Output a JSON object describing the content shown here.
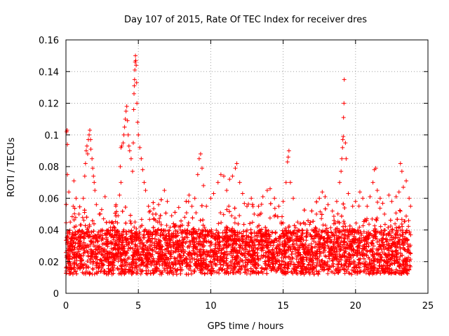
{
  "chart_data": {
    "type": "scatter",
    "title": "Day 107 of 2015, Rate Of TEC Index for receiver dres",
    "xlabel": "GPS time / hours",
    "ylabel": "ROTI / TECUs",
    "xlim": [
      0,
      25
    ],
    "ylim": [
      0,
      0.16
    ],
    "x_ticks": [
      0,
      5,
      10,
      15,
      20,
      25
    ],
    "x_tick_labels": [
      "0",
      "5",
      "10",
      "15",
      "20",
      "25"
    ],
    "y_ticks": [
      0,
      0.02,
      0.04,
      0.06,
      0.08,
      0.1,
      0.12,
      0.14,
      0.16
    ],
    "y_tick_labels": [
      "0",
      "0.02",
      "0.04",
      "0.06",
      "0.08",
      "0.1",
      "0.12",
      "0.14",
      "0.16"
    ],
    "grid": true,
    "marker": "+",
    "color": "#ff0000",
    "series": [
      {
        "name": "ROTI",
        "points": [
          [
            0.05,
            0.102
          ],
          [
            0.08,
            0.103
          ],
          [
            0.1,
            0.094
          ],
          [
            0.1,
            0.075
          ],
          [
            0.2,
            0.064
          ],
          [
            0.3,
            0.045
          ],
          [
            0.5,
            0.055
          ],
          [
            0.55,
            0.071
          ],
          [
            0.7,
            0.06
          ],
          [
            0.9,
            0.05
          ],
          [
            1.2,
            0.06
          ],
          [
            1.3,
            0.074
          ],
          [
            1.35,
            0.082
          ],
          [
            1.4,
            0.09
          ],
          [
            1.45,
            0.093
          ],
          [
            1.5,
            0.088
          ],
          [
            1.55,
            0.097
          ],
          [
            1.6,
            0.1
          ],
          [
            1.65,
            0.103
          ],
          [
            1.7,
            0.097
          ],
          [
            1.72,
            0.091
          ],
          [
            1.8,
            0.085
          ],
          [
            1.85,
            0.079
          ],
          [
            1.9,
            0.074
          ],
          [
            1.95,
            0.07
          ],
          [
            2.0,
            0.065
          ],
          [
            2.1,
            0.056
          ],
          [
            2.3,
            0.05
          ],
          [
            2.6,
            0.047
          ],
          [
            2.7,
            0.061
          ],
          [
            3.0,
            0.045
          ],
          [
            3.3,
            0.042
          ],
          [
            3.6,
            0.049
          ],
          [
            3.7,
            0.062
          ],
          [
            3.8,
            0.07
          ],
          [
            3.75,
            0.08
          ],
          [
            3.8,
            0.092
          ],
          [
            3.85,
            0.093
          ],
          [
            3.95,
            0.095
          ],
          [
            4.0,
            0.1
          ],
          [
            4.05,
            0.105
          ],
          [
            4.1,
            0.11
          ],
          [
            4.15,
            0.115
          ],
          [
            4.2,
            0.118
          ],
          [
            4.25,
            0.109
          ],
          [
            4.3,
            0.1
          ],
          [
            4.35,
            0.093
          ],
          [
            4.4,
            0.09
          ],
          [
            4.5,
            0.085
          ],
          [
            4.6,
            0.077
          ],
          [
            4.65,
            0.095
          ],
          [
            4.68,
            0.116
          ],
          [
            4.7,
            0.126
          ],
          [
            4.72,
            0.131
          ],
          [
            4.74,
            0.135
          ],
          [
            4.76,
            0.141
          ],
          [
            4.78,
            0.146
          ],
          [
            4.8,
            0.15
          ],
          [
            4.82,
            0.147
          ],
          [
            4.85,
            0.144
          ],
          [
            4.88,
            0.133
          ],
          [
            4.9,
            0.12
          ],
          [
            4.95,
            0.108
          ],
          [
            5.0,
            0.1
          ],
          [
            5.1,
            0.092
          ],
          [
            5.2,
            0.085
          ],
          [
            5.3,
            0.078
          ],
          [
            5.4,
            0.07
          ],
          [
            5.5,
            0.065
          ],
          [
            5.7,
            0.055
          ],
          [
            6.0,
            0.05
          ],
          [
            6.2,
            0.046
          ],
          [
            6.4,
            0.056
          ],
          [
            6.8,
            0.065
          ],
          [
            7.0,
            0.058
          ],
          [
            7.3,
            0.049
          ],
          [
            7.6,
            0.043
          ],
          [
            7.9,
            0.04
          ],
          [
            8.2,
            0.048
          ],
          [
            8.5,
            0.062
          ],
          [
            8.7,
            0.055
          ],
          [
            8.9,
            0.06
          ],
          [
            9.1,
            0.075
          ],
          [
            9.2,
            0.085
          ],
          [
            9.3,
            0.088
          ],
          [
            9.4,
            0.079
          ],
          [
            9.5,
            0.068
          ],
          [
            9.7,
            0.055
          ],
          [
            10.0,
            0.06
          ],
          [
            10.2,
            0.063
          ],
          [
            10.5,
            0.07
          ],
          [
            10.7,
            0.075
          ],
          [
            10.9,
            0.074
          ],
          [
            11.1,
            0.065
          ],
          [
            11.3,
            0.072
          ],
          [
            11.5,
            0.074
          ],
          [
            11.7,
            0.079
          ],
          [
            11.8,
            0.082
          ],
          [
            12.0,
            0.07
          ],
          [
            12.2,
            0.063
          ],
          [
            12.5,
            0.055
          ],
          [
            12.8,
            0.06
          ],
          [
            13.0,
            0.05
          ],
          [
            13.3,
            0.055
          ],
          [
            13.6,
            0.061
          ],
          [
            13.9,
            0.065
          ],
          [
            14.1,
            0.066
          ],
          [
            14.4,
            0.06
          ],
          [
            14.7,
            0.055
          ],
          [
            15.0,
            0.058
          ],
          [
            15.2,
            0.07
          ],
          [
            15.3,
            0.083
          ],
          [
            15.35,
            0.086
          ],
          [
            15.4,
            0.09
          ],
          [
            15.5,
            0.07
          ],
          [
            15.7,
            0.06
          ],
          [
            16.0,
            0.045
          ],
          [
            16.3,
            0.04
          ],
          [
            16.6,
            0.038
          ],
          [
            17.0,
            0.04
          ],
          [
            17.3,
            0.05
          ],
          [
            17.5,
            0.06
          ],
          [
            17.7,
            0.064
          ],
          [
            17.9,
            0.061
          ],
          [
            18.1,
            0.056
          ],
          [
            18.4,
            0.052
          ],
          [
            18.7,
            0.058
          ],
          [
            18.9,
            0.07
          ],
          [
            19.0,
            0.077
          ],
          [
            19.05,
            0.085
          ],
          [
            19.1,
            0.092
          ],
          [
            19.12,
            0.097
          ],
          [
            19.15,
            0.099
          ],
          [
            19.17,
            0.111
          ],
          [
            19.2,
            0.12
          ],
          [
            19.22,
            0.135
          ],
          [
            19.3,
            0.095
          ],
          [
            19.35,
            0.085
          ],
          [
            19.5,
            0.063
          ],
          [
            19.8,
            0.055
          ],
          [
            20.0,
            0.058
          ],
          [
            20.3,
            0.064
          ],
          [
            20.5,
            0.06
          ],
          [
            20.8,
            0.055
          ],
          [
            21.0,
            0.061
          ],
          [
            21.2,
            0.07
          ],
          [
            21.3,
            0.078
          ],
          [
            21.4,
            0.079
          ],
          [
            21.5,
            0.065
          ],
          [
            21.7,
            0.06
          ],
          [
            22.0,
            0.05
          ],
          [
            22.3,
            0.062
          ],
          [
            22.5,
            0.058
          ],
          [
            22.8,
            0.061
          ],
          [
            23.0,
            0.064
          ],
          [
            23.1,
            0.082
          ],
          [
            23.2,
            0.077
          ],
          [
            23.3,
            0.067
          ],
          [
            23.5,
            0.071
          ],
          [
            23.7,
            0.06
          ],
          [
            23.8,
            0.055
          ]
        ]
      }
    ]
  }
}
